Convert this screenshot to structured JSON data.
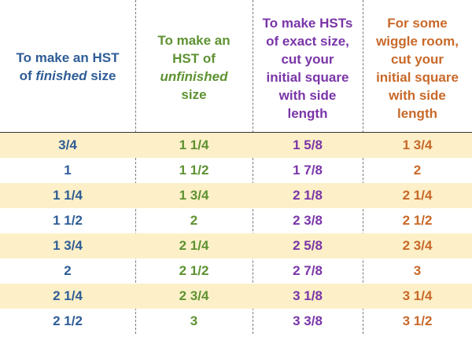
{
  "colors": {
    "col1": "#2f5d96",
    "col2": "#5e9232",
    "col3": "#7a35a8",
    "col4": "#c8692a",
    "row_shade": "#fdf0c8"
  },
  "headers": {
    "col1_a": "To make an HST",
    "col1_b": "of",
    "col1_em": "finished",
    "col1_c": "size",
    "col2_a": "To make an",
    "col2_b": "HST of",
    "col2_em": "unfinished",
    "col2_c": "size",
    "col3_1": "To make HSTs",
    "col3_2": "of exact size,",
    "col3_3": "cut your",
    "col3_4": "initial square",
    "col3_5": "with side",
    "col3_6": "length",
    "col4_1": "For some",
    "col4_2": "wiggle room,",
    "col4_3": "cut your",
    "col4_4": "initial square",
    "col4_5": "with side",
    "col4_6": "length"
  },
  "rows": [
    [
      "3/4",
      "1 1/4",
      "1 5/8",
      "1 3/4"
    ],
    [
      "1",
      "1 1/2",
      "1 7/8",
      "2"
    ],
    [
      "1 1/4",
      "1 3/4",
      "2 1/8",
      "2 1/4"
    ],
    [
      "1 1/2",
      "2",
      "2 3/8",
      "2 1/2"
    ],
    [
      "1 3/4",
      "2 1/4",
      "2 5/8",
      "2 3/4"
    ],
    [
      "2",
      "2 1/2",
      "2 7/8",
      "3"
    ],
    [
      "2 1/4",
      "2 3/4",
      "3 1/8",
      "3 1/4"
    ],
    [
      "2 1/2",
      "3",
      "3 3/8",
      "3 1/2"
    ]
  ]
}
